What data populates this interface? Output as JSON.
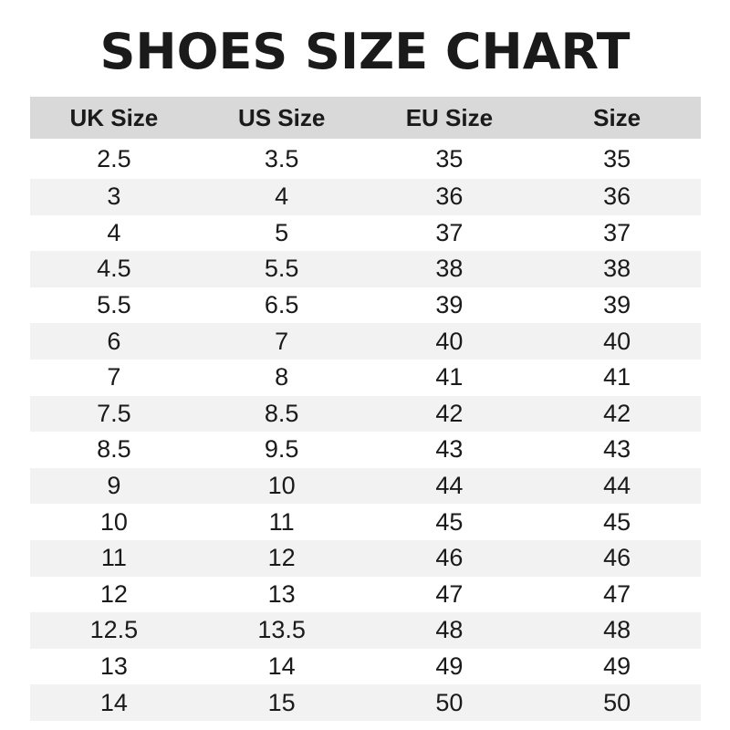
{
  "title": "SHOES SIZE CHART",
  "table": {
    "columns": [
      "UK Size",
      "US Size",
      "EU Size",
      "Size"
    ],
    "rows": [
      [
        "2.5",
        "3.5",
        "35",
        "35"
      ],
      [
        "3",
        "4",
        "36",
        "36"
      ],
      [
        "4",
        "5",
        "37",
        "37"
      ],
      [
        "4.5",
        "5.5",
        "38",
        "38"
      ],
      [
        "5.5",
        "6.5",
        "39",
        "39"
      ],
      [
        "6",
        "7",
        "40",
        "40"
      ],
      [
        "7",
        "8",
        "41",
        "41"
      ],
      [
        "7.5",
        "8.5",
        "42",
        "42"
      ],
      [
        "8.5",
        "9.5",
        "43",
        "43"
      ],
      [
        "9",
        "10",
        "44",
        "44"
      ],
      [
        "10",
        "11",
        "45",
        "45"
      ],
      [
        "11",
        "12",
        "46",
        "46"
      ],
      [
        "12",
        "13",
        "47",
        "47"
      ],
      [
        "12.5",
        "13.5",
        "48",
        "48"
      ],
      [
        "13",
        "14",
        "49",
        "49"
      ],
      [
        "14",
        "15",
        "50",
        "50"
      ]
    ]
  },
  "colors": {
    "header_bg": "#d9d9d9",
    "stripe_bg": "#f2f2f2",
    "text": "#1a1a1a"
  }
}
